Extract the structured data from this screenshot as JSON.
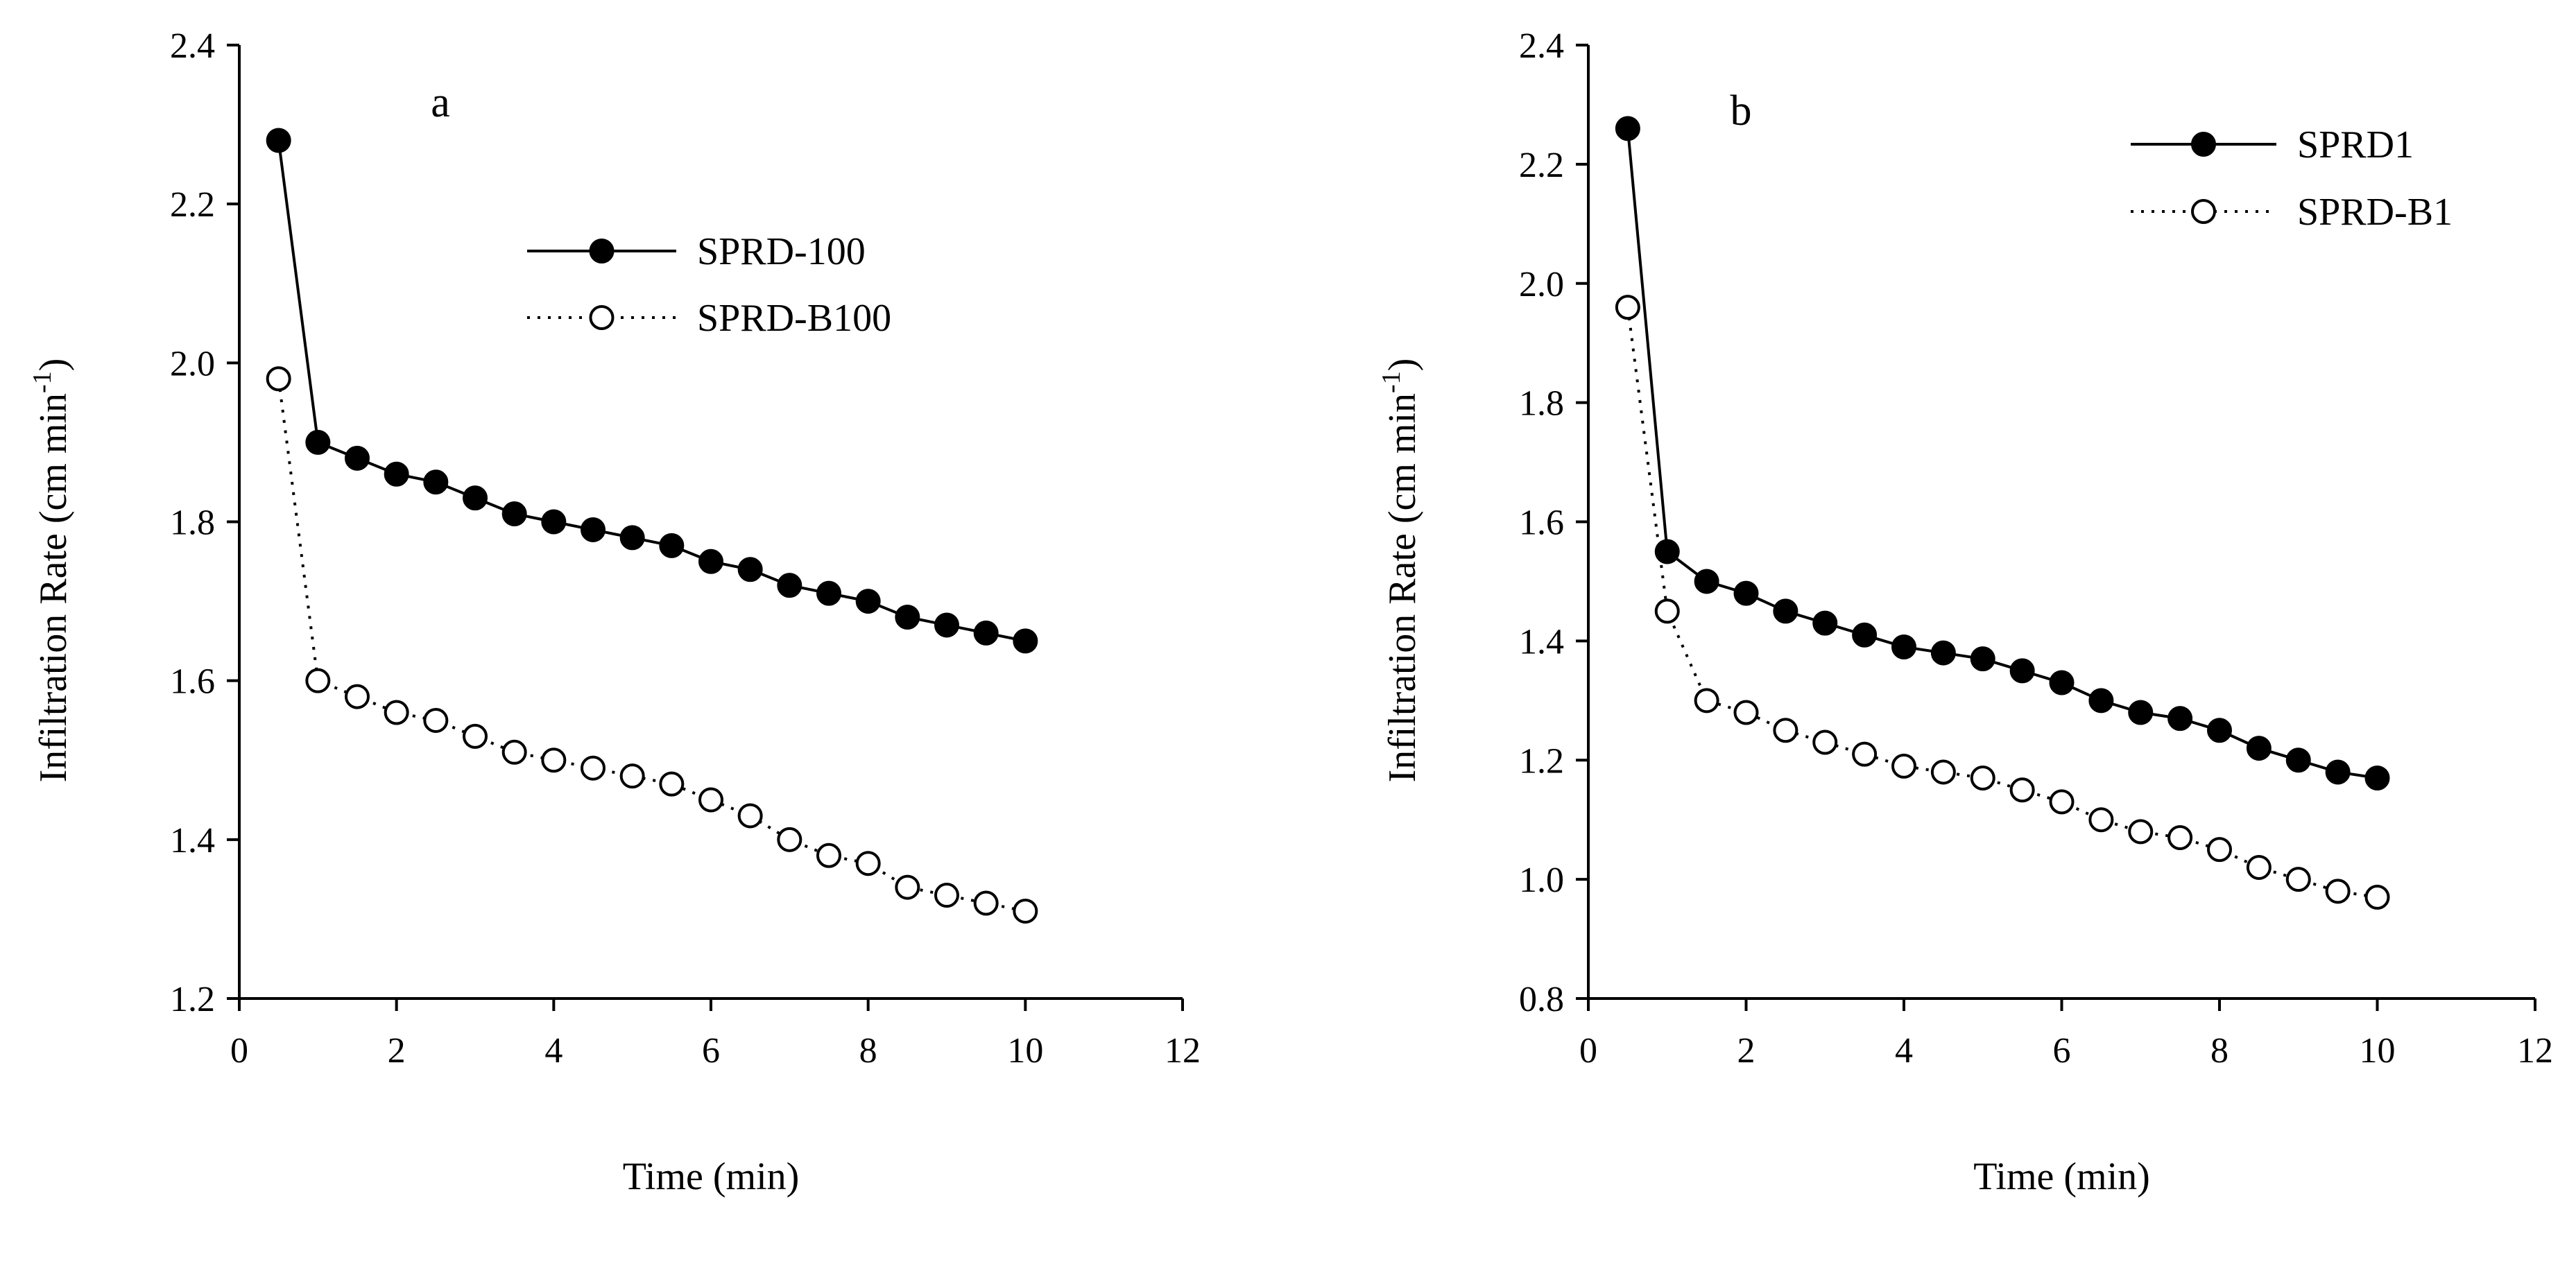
{
  "chart_data": [
    {
      "type": "line",
      "panel_label": "a",
      "xlabel": "Time (min)",
      "ylabel": "Infiltration Rate (cm min",
      "ylabel_sup": "-1",
      "ylabel_close": ")",
      "xlim": [
        0,
        12
      ],
      "ylim": [
        1.2,
        2.4
      ],
      "xticks": [
        "0",
        "2",
        "4",
        "6",
        "8",
        "10",
        "12"
      ],
      "yticks": [
        "1.2",
        "1.4",
        "1.6",
        "1.8",
        "2.0",
        "2.2",
        "2.4"
      ],
      "legend_position": "upper-center",
      "x": [
        0.5,
        1,
        1.5,
        2,
        2.5,
        3,
        3.5,
        4,
        4.5,
        5,
        5.5,
        6,
        6.5,
        7,
        7.5,
        8,
        8.5,
        9,
        9.5,
        10
      ],
      "series": [
        {
          "name": "SPRD-100",
          "style": "solid-filled",
          "values": [
            2.28,
            1.9,
            1.88,
            1.86,
            1.85,
            1.83,
            1.81,
            1.8,
            1.79,
            1.78,
            1.77,
            1.75,
            1.74,
            1.72,
            1.71,
            1.7,
            1.68,
            1.67,
            1.66,
            1.65
          ]
        },
        {
          "name": "SPRD-B100",
          "style": "dotted-open",
          "values": [
            1.98,
            1.6,
            1.58,
            1.56,
            1.55,
            1.53,
            1.51,
            1.5,
            1.49,
            1.48,
            1.47,
            1.45,
            1.43,
            1.4,
            1.38,
            1.37,
            1.34,
            1.33,
            1.32,
            1.31
          ]
        }
      ]
    },
    {
      "type": "line",
      "panel_label": "b",
      "xlabel": "Time (min)",
      "ylabel": "Infiltration Rate (cm min",
      "ylabel_sup": "-1",
      "ylabel_close": ")",
      "xlim": [
        0,
        12
      ],
      "ylim": [
        0.8,
        2.4
      ],
      "xticks": [
        "0",
        "2",
        "4",
        "6",
        "8",
        "10",
        "12"
      ],
      "yticks": [
        "0.8",
        "1.0",
        "1.2",
        "1.4",
        "1.6",
        "1.8",
        "2.0",
        "2.2",
        "2.4"
      ],
      "legend_position": "top-right",
      "x": [
        0.5,
        1,
        1.5,
        2,
        2.5,
        3,
        3.5,
        4,
        4.5,
        5,
        5.5,
        6,
        6.5,
        7,
        7.5,
        8,
        8.5,
        9,
        9.5,
        10
      ],
      "series": [
        {
          "name": "SPRD1",
          "style": "solid-filled",
          "values": [
            2.26,
            1.55,
            1.5,
            1.48,
            1.45,
            1.43,
            1.41,
            1.39,
            1.38,
            1.37,
            1.35,
            1.33,
            1.3,
            1.28,
            1.27,
            1.25,
            1.22,
            1.2,
            1.18,
            1.17
          ]
        },
        {
          "name": "SPRD-B1",
          "style": "dotted-open",
          "values": [
            1.96,
            1.45,
            1.3,
            1.28,
            1.25,
            1.23,
            1.21,
            1.19,
            1.18,
            1.17,
            1.15,
            1.13,
            1.1,
            1.08,
            1.07,
            1.05,
            1.02,
            1.0,
            0.98,
            0.97
          ]
        }
      ]
    }
  ]
}
